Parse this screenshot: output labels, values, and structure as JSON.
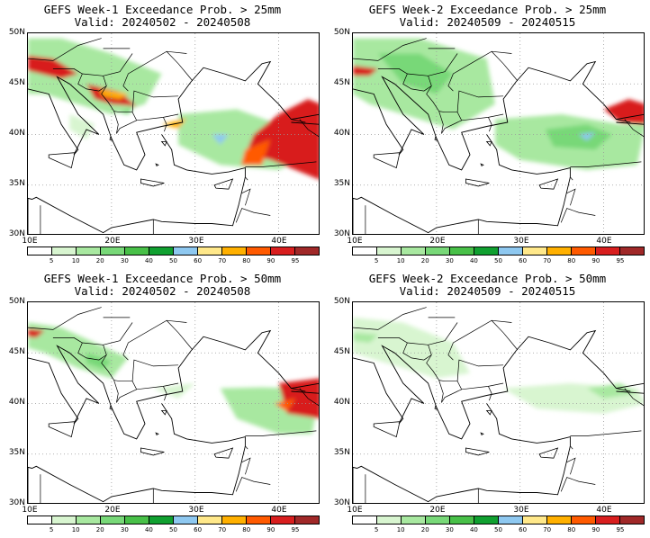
{
  "colorbar": {
    "labels": [
      "5",
      "10",
      "20",
      "30",
      "40",
      "50",
      "60",
      "70",
      "80",
      "90",
      "95"
    ],
    "colors": [
      "#ffffff",
      "#d8f5d0",
      "#a8e8a0",
      "#78d878",
      "#48c048",
      "#10a030",
      "#8ec8f0",
      "#ffe88a",
      "#ffb000",
      "#ff5a00",
      "#d81e1e",
      "#a02828"
    ]
  },
  "axes": {
    "lat_labels": [
      "50N",
      "45N",
      "40N",
      "35N",
      "30N"
    ],
    "lon_labels": [
      "10E",
      "20E",
      "30E",
      "40E"
    ]
  },
  "panels": [
    {
      "title1": "GEFS Week-1 Exceedance Prob. > 25mm",
      "title2": "Valid: 20240502 - 20240508",
      "level": "heavy"
    },
    {
      "title1": "GEFS Week-2 Exceedance Prob. > 25mm",
      "title2": "Valid: 20240509 - 20240515",
      "level": "medium"
    },
    {
      "title1": "GEFS Week-1 Exceedance Prob. > 50mm",
      "title2": "Valid: 20240502 - 20240508",
      "level": "light"
    },
    {
      "title1": "GEFS Week-2 Exceedance Prob. > 50mm",
      "title2": "Valid: 20240509 - 20240515",
      "level": "faint"
    }
  ]
}
